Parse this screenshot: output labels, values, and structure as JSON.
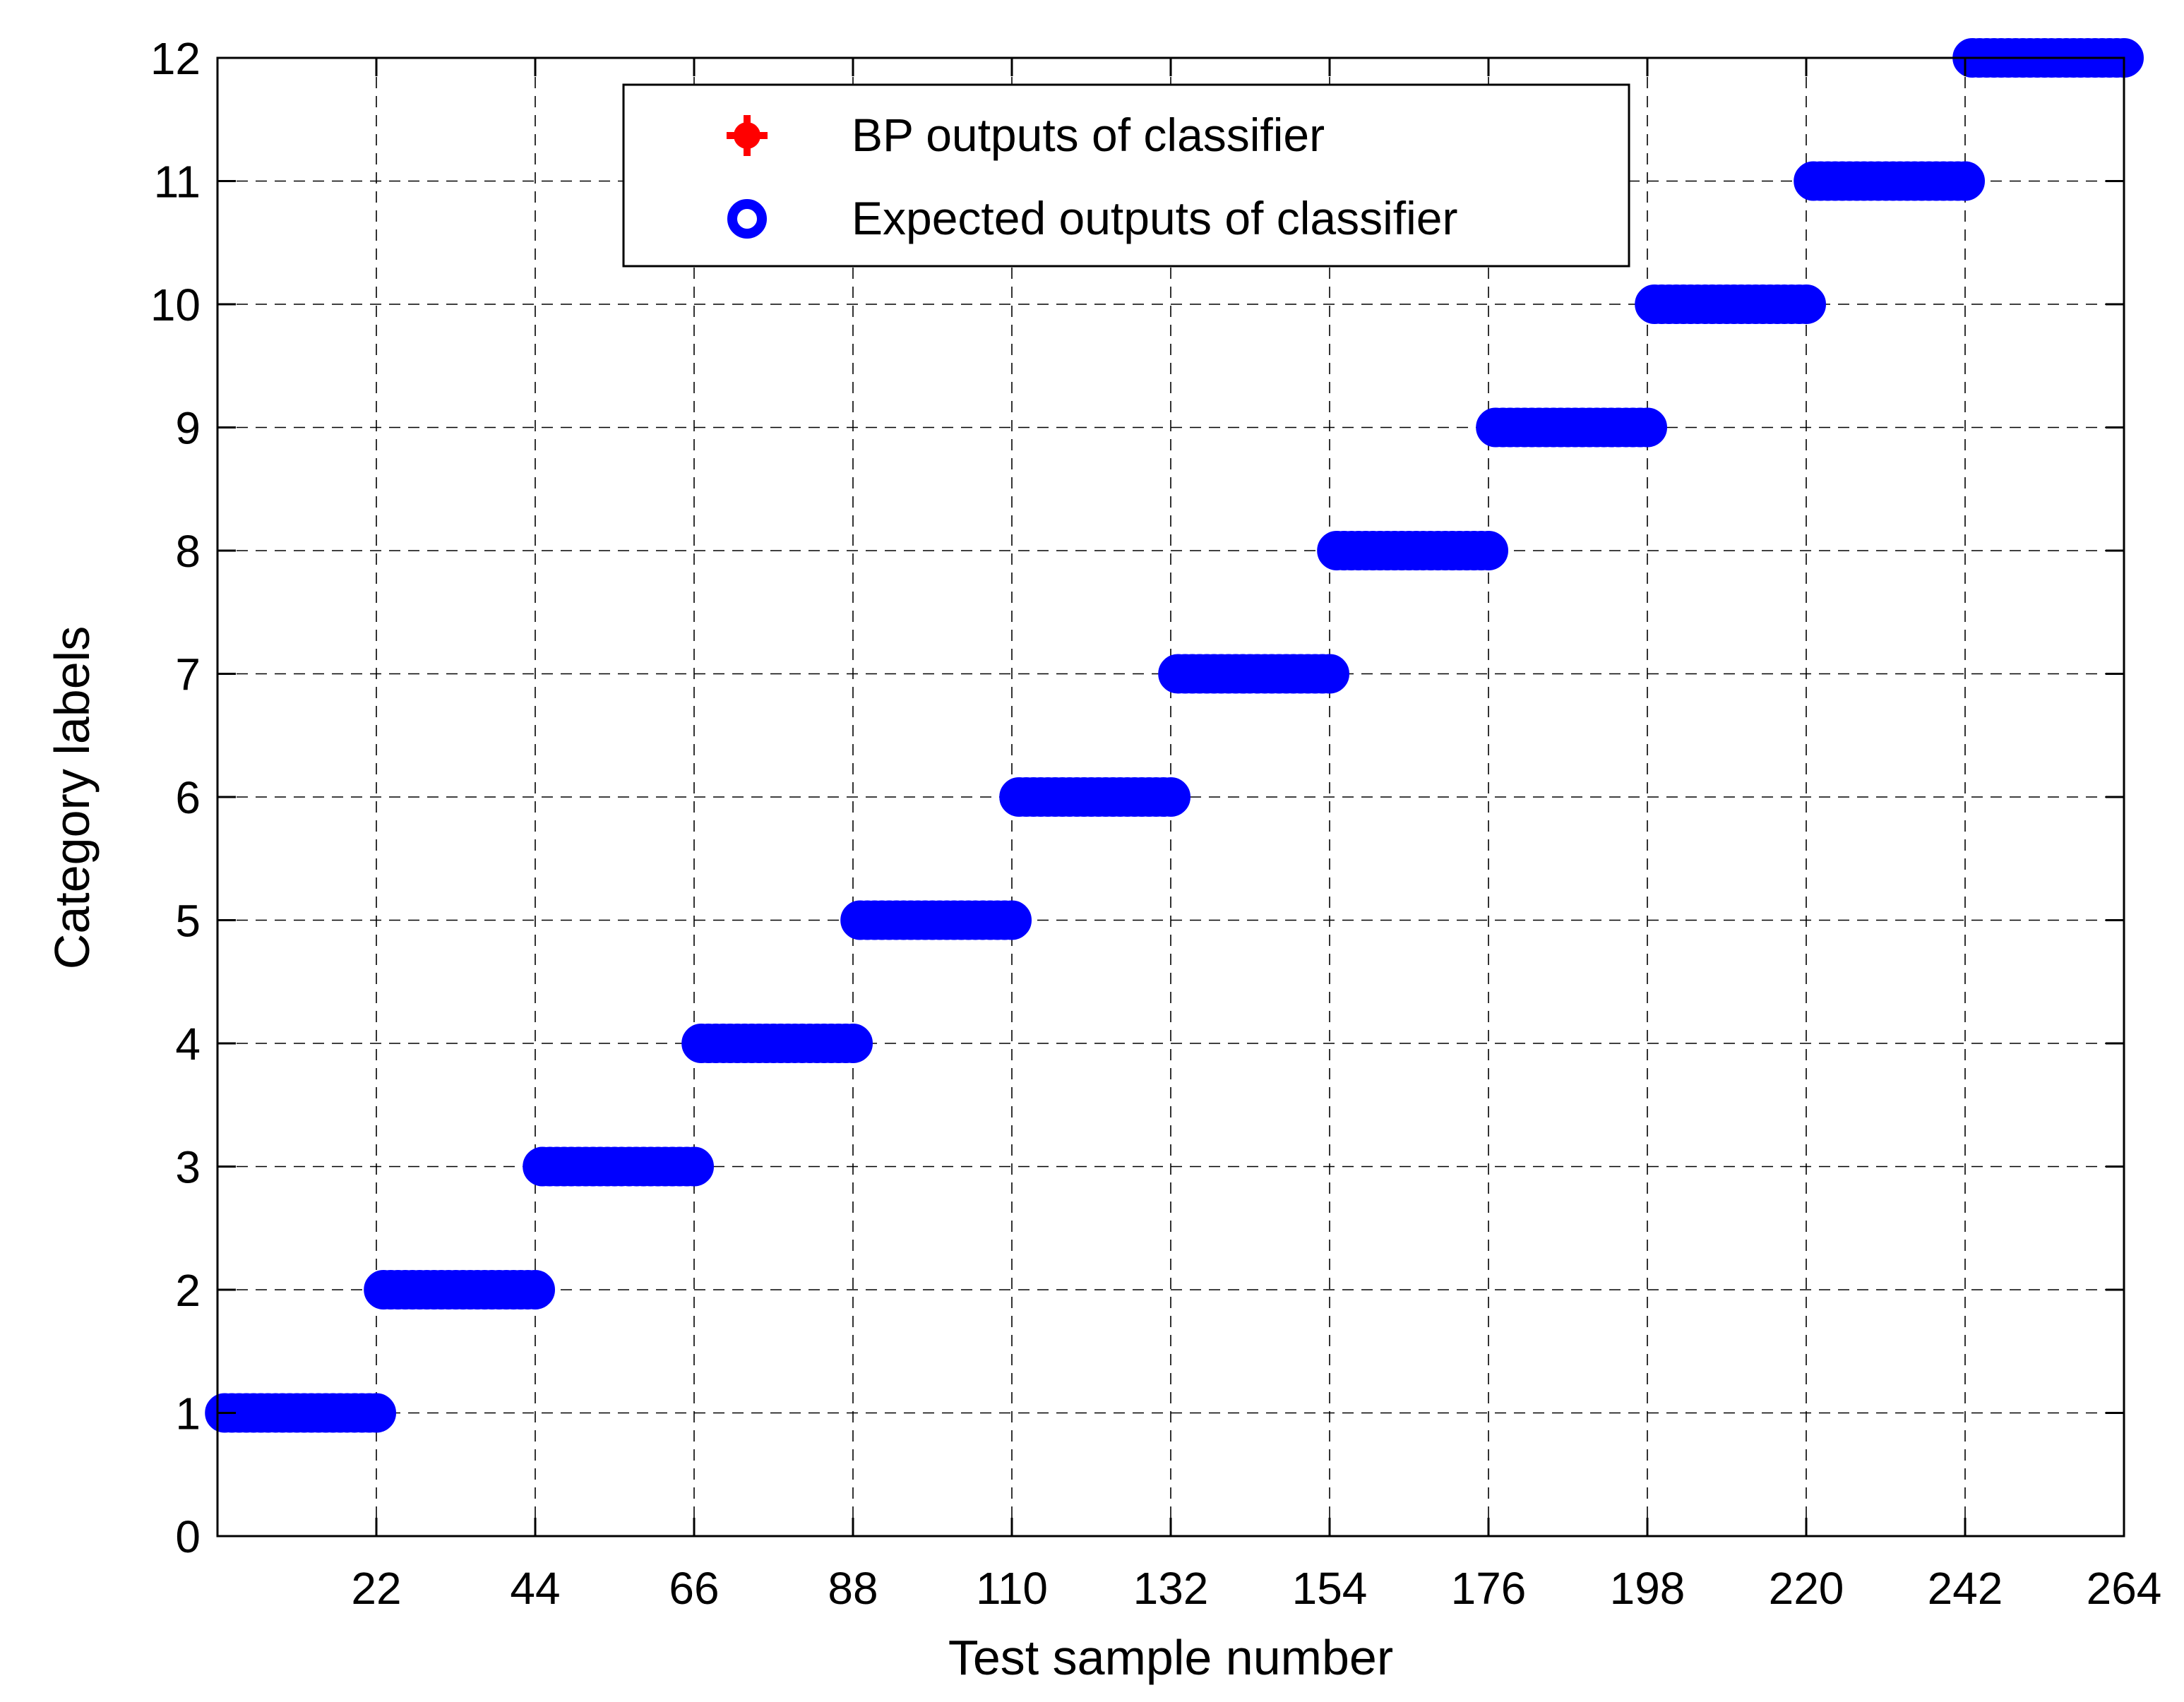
{
  "chart_data": {
    "type": "scatter",
    "xlabel": "Test sample number",
    "ylabel": "Category labels",
    "xlim": [
      0,
      264
    ],
    "ylim": [
      0,
      12
    ],
    "xticks": [
      22,
      44,
      66,
      88,
      110,
      132,
      154,
      176,
      198,
      220,
      242,
      264
    ],
    "yticks": [
      0,
      1,
      2,
      3,
      4,
      5,
      6,
      7,
      8,
      9,
      10,
      11,
      12
    ],
    "grid": true,
    "legend_position": "top-center",
    "samples_per_class": 22,
    "num_classes": 12,
    "series": [
      {
        "name": "BP outputs of classifier",
        "marker": "filled-dot",
        "color": "#ff0000",
        "points": "one point per sample at its class label (hidden under expected outputs)"
      },
      {
        "name": "Expected outputs of classifier",
        "marker": "open-circle",
        "color": "#0000ff",
        "points": "one point per sample at its class label"
      }
    ],
    "class_segments": [
      {
        "label": 1,
        "x_start": 1,
        "x_end": 22
      },
      {
        "label": 2,
        "x_start": 23,
        "x_end": 44
      },
      {
        "label": 3,
        "x_start": 45,
        "x_end": 66
      },
      {
        "label": 4,
        "x_start": 67,
        "x_end": 88
      },
      {
        "label": 5,
        "x_start": 89,
        "x_end": 110
      },
      {
        "label": 6,
        "x_start": 111,
        "x_end": 132
      },
      {
        "label": 7,
        "x_start": 133,
        "x_end": 154
      },
      {
        "label": 8,
        "x_start": 155,
        "x_end": 176
      },
      {
        "label": 9,
        "x_start": 177,
        "x_end": 198
      },
      {
        "label": 10,
        "x_start": 199,
        "x_end": 220
      },
      {
        "label": 11,
        "x_start": 221,
        "x_end": 242
      },
      {
        "label": 12,
        "x_start": 243,
        "x_end": 264
      }
    ]
  }
}
